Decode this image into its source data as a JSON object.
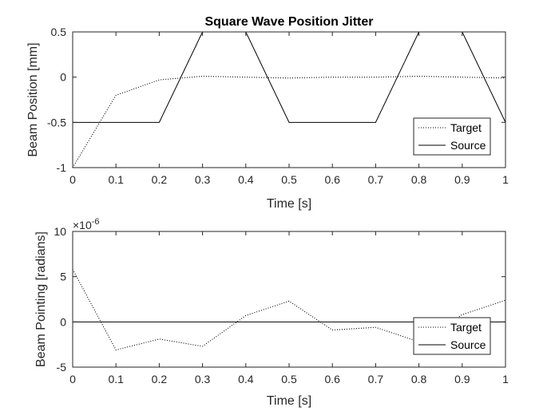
{
  "chart_data": [
    {
      "type": "line",
      "title": "Square Wave Position Jitter",
      "xlabel": "Time [s]",
      "ylabel": "Beam Position [mm]",
      "xlim": [
        0,
        1
      ],
      "ylim": [
        -1,
        0.5
      ],
      "xticks": [
        0,
        0.1,
        0.2,
        0.3,
        0.4,
        0.5,
        0.6,
        0.7,
        0.8,
        0.9,
        1
      ],
      "xtick_labels": [
        "0",
        "0.1",
        "0.2",
        "0.3",
        "0.4",
        "0.5",
        "0.6",
        "0.7",
        "0.8",
        "0.9",
        "1"
      ],
      "yticks": [
        -1,
        -0.5,
        0,
        0.5
      ],
      "ytick_labels": [
        "-1",
        "-0.5",
        "0",
        "0.5"
      ],
      "grid": false,
      "legend_position": "bottom-right",
      "series": [
        {
          "name": "Target",
          "style": "dotted",
          "color": "#000000",
          "x": [
            0,
            0.1,
            0.2,
            0.3,
            0.4,
            0.5,
            0.6,
            0.7,
            0.8,
            0.9,
            1
          ],
          "y": [
            -1,
            -0.2,
            -0.03,
            0.01,
            0.0,
            -0.01,
            0.0,
            0.0,
            0.01,
            0.0,
            -0.01
          ]
        },
        {
          "name": "Source",
          "style": "solid",
          "color": "#000000",
          "x": [
            0,
            0.2,
            0.3,
            0.4,
            0.5,
            0.7,
            0.8,
            0.9,
            1
          ],
          "y": [
            -0.5,
            -0.5,
            0.5,
            0.5,
            -0.5,
            -0.5,
            0.5,
            0.5,
            -0.5
          ]
        }
      ]
    },
    {
      "type": "line",
      "title": "",
      "xlabel": "Time [s]",
      "ylabel": "Beam Pointing [radians]",
      "exponent_label": "×10",
      "exponent_power": "-6",
      "xlim": [
        0,
        1
      ],
      "ylim": [
        -5,
        10
      ],
      "xticks": [
        0,
        0.1,
        0.2,
        0.3,
        0.4,
        0.5,
        0.6,
        0.7,
        0.8,
        0.9,
        1
      ],
      "xtick_labels": [
        "0",
        "0.1",
        "0.2",
        "0.3",
        "0.4",
        "0.5",
        "0.6",
        "0.7",
        "0.8",
        "0.9",
        "1"
      ],
      "yticks": [
        -5,
        0,
        5,
        10
      ],
      "ytick_labels": [
        "-5",
        "0",
        "5",
        "10"
      ],
      "grid": false,
      "legend_position": "bottom-right",
      "series": [
        {
          "name": "Target",
          "style": "dotted",
          "color": "#000000",
          "x": [
            0,
            0.1,
            0.2,
            0.3,
            0.4,
            0.5,
            0.6,
            0.7,
            0.8,
            0.9,
            1
          ],
          "y": [
            5.8,
            -3.1,
            -1.9,
            -2.7,
            0.7,
            2.3,
            -0.9,
            -0.6,
            -2.2,
            0.8,
            2.4
          ]
        },
        {
          "name": "Source",
          "style": "solid",
          "color": "#000000",
          "x": [
            0,
            1
          ],
          "y": [
            0,
            0
          ]
        }
      ]
    }
  ]
}
